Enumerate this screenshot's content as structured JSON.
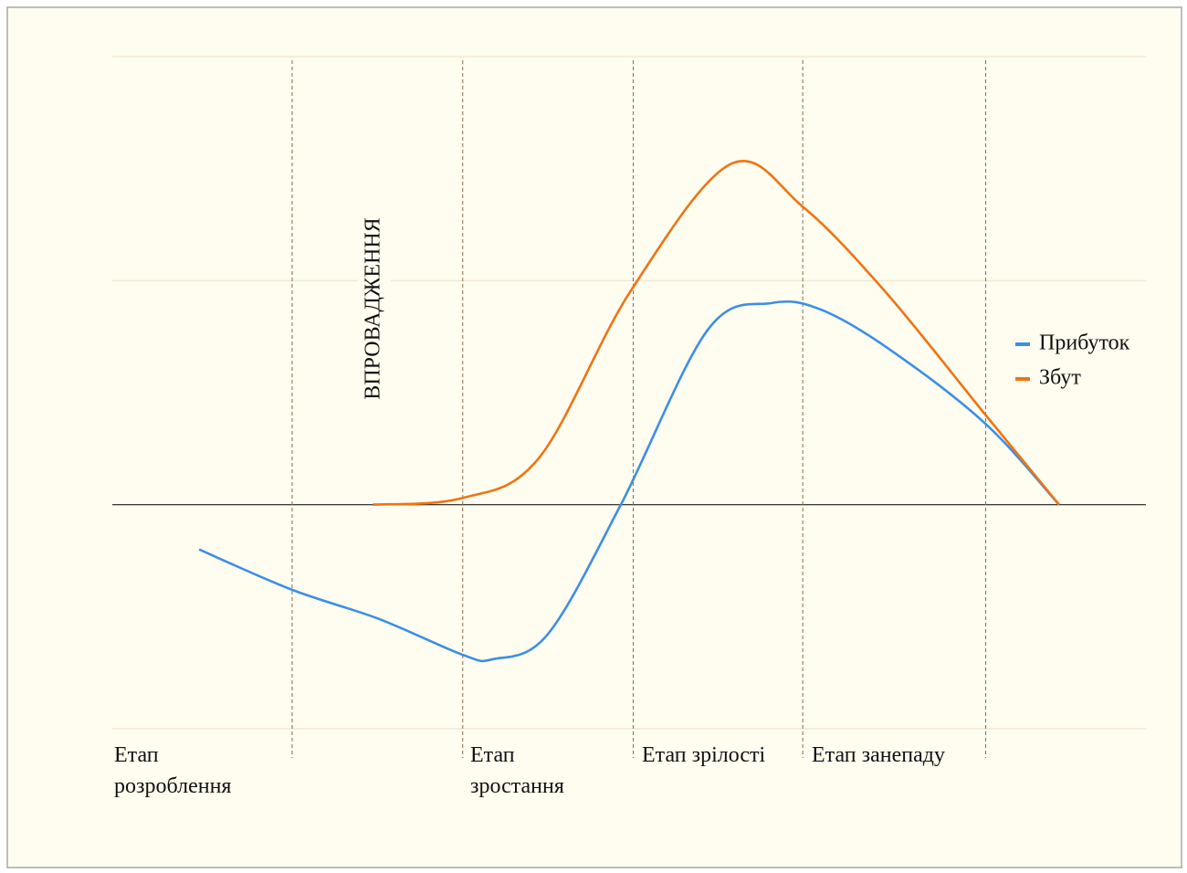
{
  "chart_data": {
    "type": "line",
    "annotation": "ВПРОВАДЖЕННЯ",
    "stages": [
      "Етап розроблення",
      "Етап зростання",
      "Етап зрілості",
      "Етап занепаду"
    ],
    "dividers": [
      17.4,
      33.9,
      50.4,
      66.8,
      84.5
    ],
    "xlim": [
      0,
      100
    ],
    "ylim": [
      -1,
      2
    ],
    "yticks": [
      -1,
      0,
      1,
      2
    ],
    "grid": true,
    "legend": "right",
    "series": [
      {
        "name": "Прибуток",
        "color": "#3d8ee6",
        "x": [
          8.4,
          17.4,
          25.8,
          33.9,
          36.8,
          42.1,
          49.2,
          57.6,
          63.8,
          68.6,
          75.3,
          84.5,
          91.6
        ],
        "values": [
          -0.2,
          -0.38,
          -0.51,
          -0.67,
          -0.69,
          -0.58,
          0,
          0.78,
          0.9,
          0.87,
          0.69,
          0.36,
          0
        ]
      },
      {
        "name": "Збут",
        "color": "#f07312",
        "x": [
          25.2,
          33.9,
          41.3,
          50.1,
          59.8,
          66.8,
          74.8,
          84.5,
          91.6
        ],
        "values": [
          0,
          0.03,
          0.21,
          0.95,
          1.52,
          1.33,
          0.95,
          0.4,
          0
        ]
      }
    ]
  }
}
